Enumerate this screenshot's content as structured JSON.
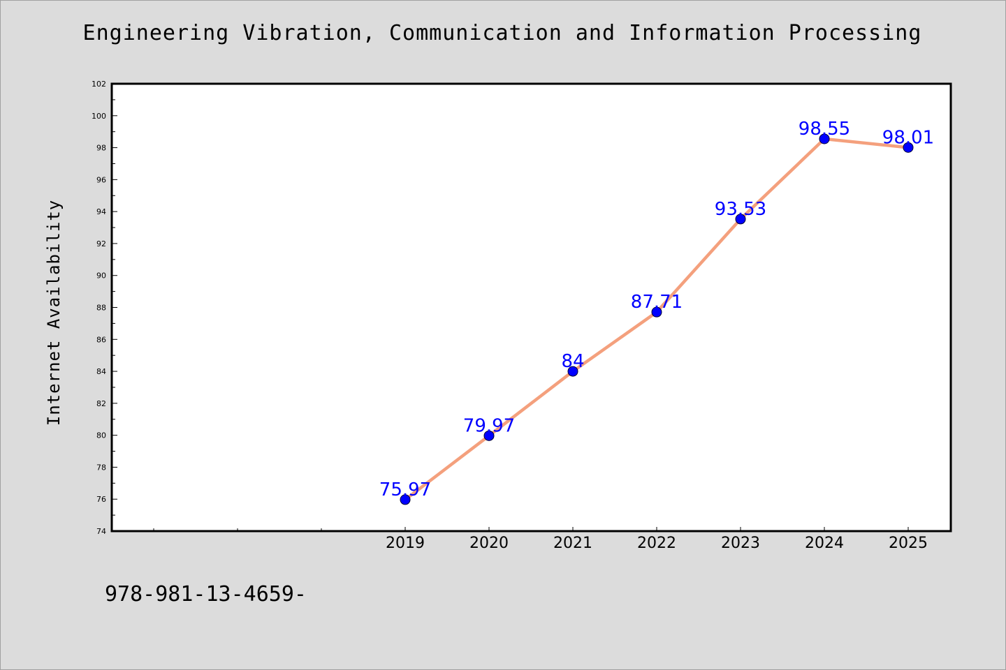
{
  "footnote": "978-981-13-4659-",
  "colors": {
    "background": "#dcdcdc",
    "plot_background": "#ffffff",
    "line": "#f4a07d",
    "marker": "#0000ff",
    "label": "#0000ff"
  },
  "chart_data": {
    "type": "line",
    "title": "Engineering Vibration, Communication and Information Processing",
    "xlabel": "",
    "ylabel": "Internet Availability",
    "categories": [
      "2019",
      "2020",
      "2021",
      "2022",
      "2023",
      "2024",
      "2025"
    ],
    "series": [
      {
        "values": [
          75.97,
          79.97,
          84,
          87.71,
          93.53,
          98.55,
          98.01
        ],
        "labels": [
          "75.97",
          "79.97",
          "84",
          "87.71",
          "93.53",
          "98.55",
          "98.01"
        ]
      }
    ],
    "ylim": [
      74,
      102
    ],
    "yticks": [
      "74",
      "76",
      "78",
      "80",
      "82",
      "84",
      "86",
      "88",
      "90",
      "92",
      "94",
      "96",
      "98",
      "100",
      "102"
    ],
    "grid": false,
    "legend": "none"
  }
}
